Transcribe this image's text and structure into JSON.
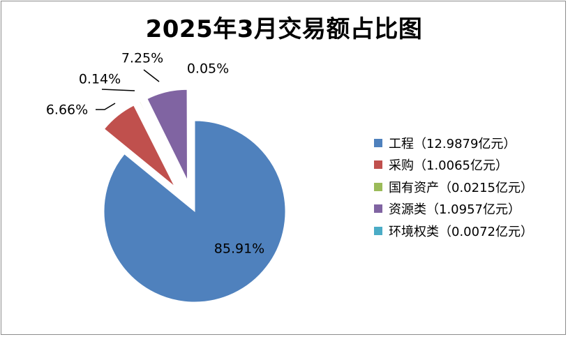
{
  "chart_data": {
    "type": "pie",
    "title": "2025年3月交易额占比图",
    "series": [
      {
        "name": "工程",
        "legend_label": "工程（12.9879亿元）",
        "value": 12.9879,
        "pct_label": "85.91%",
        "color": "#4f81bd",
        "exploded": false
      },
      {
        "name": "采购",
        "legend_label": "采购（1.0065亿元）",
        "value": 1.0065,
        "pct_label": "6.66%",
        "color": "#c0504d",
        "exploded": true
      },
      {
        "name": "国有资产",
        "legend_label": "国有资产（0.0215亿元）",
        "value": 0.0215,
        "pct_label": "0.14%",
        "color": "#9bbb59",
        "exploded": true
      },
      {
        "name": "资源类",
        "legend_label": "资源类（1.0957亿元）",
        "value": 1.0957,
        "pct_label": "7.25%",
        "color": "#8064a2",
        "exploded": true
      },
      {
        "name": "环境权类",
        "legend_label": "环境权类（0.0072亿元）",
        "value": 0.0072,
        "pct_label": "0.05%",
        "color": "#4bacc6",
        "exploded": true
      }
    ],
    "legend_position": "right"
  }
}
